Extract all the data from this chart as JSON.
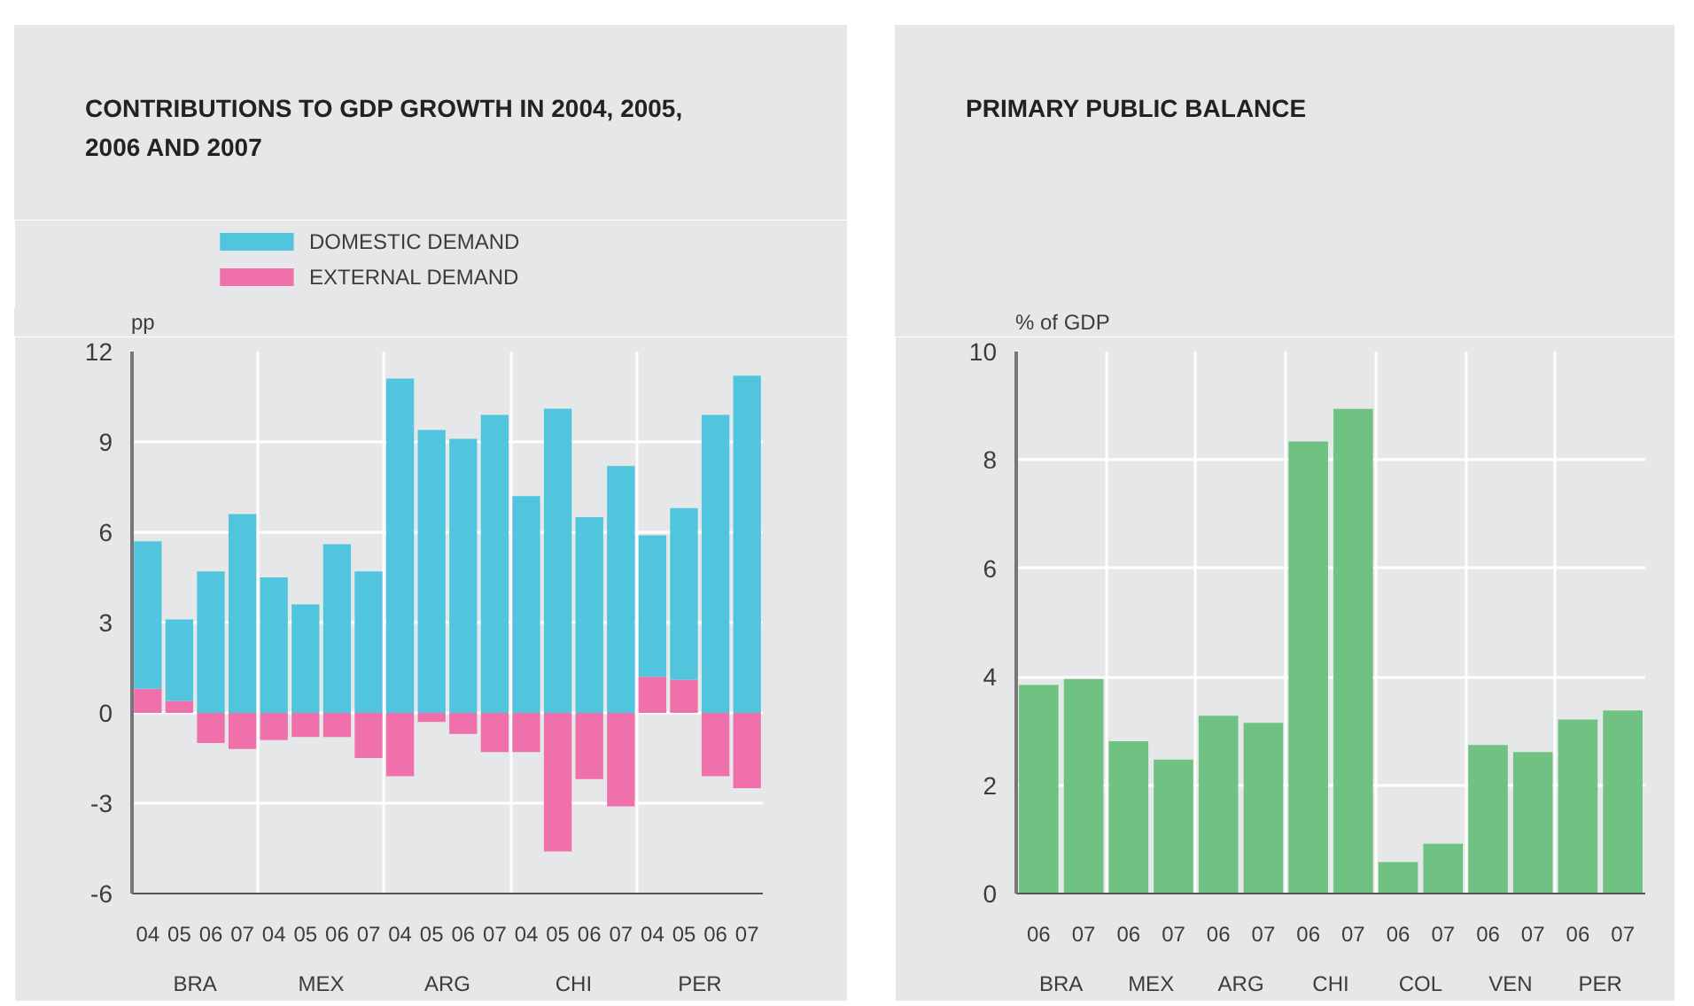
{
  "chart_data": [
    {
      "type": "bar",
      "title": "CONTRIBUTIONS TO GDP GROWTH IN 2004, 2005, 2006 AND 2007",
      "ylabel": "pp",
      "stacked": true,
      "legend": "top left",
      "grid": true,
      "categories": [
        "04",
        "05",
        "06",
        "07",
        "04",
        "05",
        "06",
        "07",
        "04",
        "05",
        "06",
        "07",
        "04",
        "05",
        "06",
        "07",
        "04",
        "05",
        "06",
        "07"
      ],
      "annotations": [
        "BRA",
        "MEX",
        "ARG",
        "CHI",
        "PER"
      ],
      "ylim": [
        -6,
        12
      ],
      "yticks": [
        -6,
        -3,
        0,
        3,
        6,
        9,
        12
      ],
      "series": [
        {
          "name": "EXTERNAL DEMAND",
          "color": "#ef70aa",
          "values": [
            0.8,
            0.4,
            -1.0,
            -1.2,
            -0.9,
            -0.8,
            -0.8,
            -1.5,
            -2.1,
            -0.3,
            -0.7,
            -1.3,
            -1.3,
            -4.6,
            -2.2,
            -3.1,
            1.2,
            1.1,
            -2.1,
            -2.5
          ]
        },
        {
          "name": "DOMESTIC DEMAND",
          "color": "#52c5de",
          "values": [
            4.9,
            2.7,
            4.7,
            6.6,
            4.5,
            3.6,
            5.6,
            4.7,
            11.1,
            9.4,
            9.1,
            9.9,
            7.2,
            10.1,
            6.5,
            8.2,
            4.7,
            5.7,
            9.9,
            11.2
          ]
        }
      ]
    },
    {
      "type": "bar",
      "title": "PRIMARY PUBLIC BALANCE",
      "ylabel": "% of GDP",
      "grid": true,
      "categories": [
        "06",
        "07",
        "06",
        "07",
        "06",
        "07",
        "06",
        "07",
        "06",
        "07",
        "06",
        "07",
        "06",
        "07"
      ],
      "annotations": [
        "BRA",
        "MEX",
        "ARG",
        "CHI",
        "COL",
        "VEN",
        "PER"
      ],
      "ylim": [
        0,
        10
      ],
      "yticks": [
        0,
        2,
        4,
        6,
        8,
        10
      ],
      "color": "#6fc282",
      "values": [
        3.85,
        3.96,
        2.81,
        2.47,
        3.28,
        3.15,
        8.34,
        8.94,
        0.58,
        0.92,
        2.74,
        2.61,
        3.21,
        3.38
      ]
    }
  ]
}
